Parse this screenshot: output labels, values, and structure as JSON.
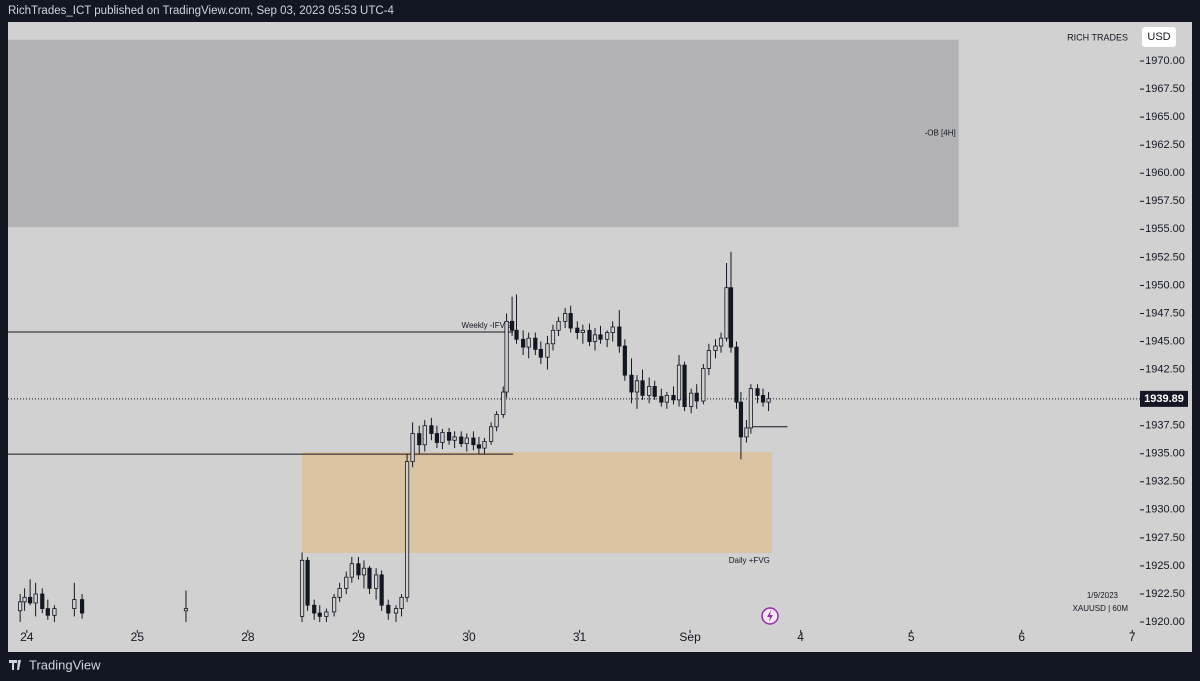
{
  "header": {
    "text": "RichTrades_ICT published on TradingView.com, Sep 03, 2023 05:53 UTC-4"
  },
  "footer": {
    "brand": "TradingView"
  },
  "chart_data": {
    "type": "candlestick",
    "color": "#131722",
    "watermark": "RICH TRADES",
    "currency": "USD",
    "date_label": "1/9/2023",
    "symbol": "XAUUSD | 60M",
    "xlim": [
      -0.17,
      10.07
    ],
    "ylim": [
      1919.29,
      1973.48
    ],
    "xticks": [
      {
        "value": 0,
        "label": "24"
      },
      {
        "value": 1,
        "label": "25"
      },
      {
        "value": 2,
        "label": "28"
      },
      {
        "value": 3,
        "label": "29"
      },
      {
        "value": 4,
        "label": "30"
      },
      {
        "value": 5,
        "label": "31"
      },
      {
        "value": 6,
        "label": "Sep"
      },
      {
        "value": 7,
        "label": "4"
      },
      {
        "value": 8,
        "label": "5"
      },
      {
        "value": 9,
        "label": "6"
      },
      {
        "value": 10,
        "label": "7"
      }
    ],
    "yticks": [
      {
        "value": 1920,
        "label": "1920.00"
      },
      {
        "value": 1922.5,
        "label": "1922.50"
      },
      {
        "value": 1925,
        "label": "1925.00"
      },
      {
        "value": 1927.5,
        "label": "1927.50"
      },
      {
        "value": 1930,
        "label": "1930.00"
      },
      {
        "value": 1932.5,
        "label": "1932.50"
      },
      {
        "value": 1935,
        "label": "1935.00"
      },
      {
        "value": 1937.5,
        "label": "1937.50"
      },
      {
        "value": 1940,
        "label": "1940.00"
      },
      {
        "value": 1942.5,
        "label": "1942.50"
      },
      {
        "value": 1945,
        "label": "1945.00"
      },
      {
        "value": 1947.5,
        "label": "1947.50"
      },
      {
        "value": 1950,
        "label": "1950.00"
      },
      {
        "value": 1952.5,
        "label": "1952.50"
      },
      {
        "value": 1955,
        "label": "1955.00"
      },
      {
        "value": 1957.5,
        "label": "1957.50"
      },
      {
        "value": 1960,
        "label": "1960.00"
      },
      {
        "value": 1962.5,
        "label": "1962.50"
      },
      {
        "value": 1965,
        "label": "1965.00"
      },
      {
        "value": 1967.5,
        "label": "1967.50"
      },
      {
        "value": 1970,
        "label": "1970.00"
      }
    ],
    "zones": [
      {
        "label": "-OB [4H]",
        "x": [
          -0.17,
          8.43
        ],
        "y": [
          1955.2,
          1971.9
        ],
        "color": "#b3b3b5"
      },
      {
        "label": "Daily +FVG",
        "x": [
          2.49,
          6.74
        ],
        "y": [
          1926.15,
          1935.15
        ],
        "color": "#dbc4a2"
      }
    ],
    "levels": [
      {
        "label": "Weekly -IFVG",
        "value": 1945.85,
        "x": [
          -0.17,
          4.4
        ]
      },
      {
        "value": 1934.97,
        "x": [
          -0.17,
          4.4
        ]
      },
      {
        "value": 1937.4,
        "x": [
          6.56,
          6.88
        ]
      }
    ],
    "last_price": 1939.89,
    "x": [
      -0.06,
      -0.02,
      0.03,
      0.08,
      0.14,
      0.19,
      0.25,
      0.43,
      0.5,
      1.44,
      2.49,
      2.54,
      2.6,
      2.65,
      2.71,
      2.78,
      2.83,
      2.89,
      2.94,
      3.0,
      3.05,
      3.1,
      3.16,
      3.21,
      3.27,
      3.34,
      3.39,
      3.44,
      3.49,
      3.55,
      3.6,
      3.66,
      3.71,
      3.76,
      3.82,
      3.87,
      3.93,
      3.98,
      4.04,
      4.09,
      4.14,
      4.2,
      4.25,
      4.31,
      4.34,
      4.39,
      4.43,
      4.49,
      4.54,
      4.6,
      4.65,
      4.71,
      4.76,
      4.81,
      4.87,
      4.92,
      4.98,
      5.03,
      5.09,
      5.14,
      5.19,
      5.25,
      5.3,
      5.36,
      5.41,
      5.47,
      5.52,
      5.57,
      5.63,
      5.68,
      5.74,
      5.79,
      5.85,
      5.9,
      5.95,
      6.01,
      6.06,
      6.12,
      6.17,
      6.23,
      6.28,
      6.33,
      6.37,
      6.42,
      6.46,
      6.51,
      6.55,
      6.61,
      6.66,
      6.71
    ],
    "open": [
      1921,
      1921.8,
      1922.2,
      1921.7,
      1922.5,
      1921.2,
      1920.6,
      1921.2,
      1922,
      1921,
      1920.5,
      1925.5,
      1921.5,
      1920.8,
      1920.5,
      1920.9,
      1922.2,
      1923,
      1924,
      1925.2,
      1924.2,
      1924.8,
      1923,
      1924.2,
      1921.5,
      1920.8,
      1921.2,
      1922.2,
      1934.3,
      1936.8,
      1935.8,
      1937.5,
      1936.8,
      1936,
      1936.9,
      1936.2,
      1936.5,
      1935.9,
      1936.4,
      1935.8,
      1935.5,
      1936.1,
      1937.4,
      1938.5,
      1940.5,
      1946.8,
      1946,
      1945.2,
      1944.5,
      1945.3,
      1944.3,
      1943.6,
      1944.8,
      1946,
      1946.8,
      1947.5,
      1946.2,
      1945.8,
      1946,
      1945,
      1945.6,
      1945.2,
      1945.8,
      1946.3,
      1944.6,
      1942,
      1940.5,
      1941.5,
      1940.2,
      1941,
      1940.1,
      1939.6,
      1940.2,
      1939.8,
      1942.9,
      1939.2,
      1940.4,
      1939.7,
      1942.6,
      1944.2,
      1944.6,
      1945.3,
      1949.8,
      1944.5,
      1939.6,
      1936.5,
      1937.3,
      1940.8,
      1940.2,
      1939.6
    ],
    "high": [
      1922.5,
      1923,
      1923.8,
      1923.5,
      1923,
      1922,
      1921.5,
      1923.5,
      1922.5,
      1922.8,
      1926.2,
      1925.8,
      1922,
      1921.5,
      1921.2,
      1922.5,
      1923.5,
      1924.5,
      1925.8,
      1925.8,
      1925.5,
      1925,
      1924.8,
      1924.6,
      1922,
      1921.5,
      1922.5,
      1935,
      1937.8,
      1937.5,
      1938,
      1938.2,
      1937.5,
      1937.2,
      1937.3,
      1937,
      1937,
      1936.8,
      1937,
      1936.5,
      1936.4,
      1937.8,
      1938.8,
      1941,
      1947.5,
      1949,
      1949.2,
      1946,
      1945.8,
      1945.8,
      1945,
      1945.5,
      1946.5,
      1947.2,
      1948,
      1948.2,
      1946.8,
      1946.5,
      1946.6,
      1946.2,
      1946.4,
      1946,
      1946.8,
      1947.8,
      1945.2,
      1943.5,
      1942,
      1942.5,
      1941.8,
      1941.5,
      1940.8,
      1940.5,
      1941,
      1943.8,
      1943.2,
      1940.8,
      1941.2,
      1943,
      1944.8,
      1945.2,
      1945.8,
      1952,
      1953,
      1945,
      1940.5,
      1938,
      1941.2,
      1941.2,
      1940.8,
      1940.5
    ],
    "low": [
      1920,
      1921,
      1921.5,
      1920.5,
      1920.8,
      1920.2,
      1920,
      1920.5,
      1920.3,
      1920,
      1920,
      1921,
      1920.2,
      1920,
      1920,
      1920.5,
      1921.8,
      1922.5,
      1923.5,
      1923.8,
      1923,
      1922.5,
      1922,
      1921,
      1920.2,
      1920,
      1920.5,
      1921.8,
      1933.8,
      1935,
      1935.2,
      1936.2,
      1935.5,
      1935.4,
      1935.8,
      1935.5,
      1935.6,
      1935.2,
      1935.3,
      1935,
      1935,
      1935.8,
      1937,
      1938.2,
      1940,
      1945.5,
      1944.8,
      1943.8,
      1943.5,
      1943.8,
      1943,
      1942.5,
      1944.2,
      1945.5,
      1946.2,
      1945.8,
      1945.2,
      1944.8,
      1944.6,
      1944.2,
      1944.8,
      1944.5,
      1945,
      1944,
      1941.5,
      1939.5,
      1939,
      1939.8,
      1939.5,
      1939.8,
      1939.2,
      1939,
      1939.4,
      1939.2,
      1938.8,
      1938.6,
      1939,
      1939.4,
      1942,
      1943.5,
      1944,
      1945,
      1944,
      1939,
      1934.5,
      1936,
      1936.8,
      1939.5,
      1939.2,
      1938.8
    ],
    "close": [
      1921.8,
      1922.2,
      1921.7,
      1922.5,
      1921.2,
      1920.6,
      1921.2,
      1922,
      1920.8,
      1921.2,
      1925.5,
      1921.5,
      1920.8,
      1920.5,
      1920.9,
      1922.2,
      1923,
      1924,
      1925.2,
      1924.2,
      1924.8,
      1923,
      1924.2,
      1921.5,
      1920.8,
      1921.2,
      1922.2,
      1934.3,
      1936.8,
      1935.8,
      1937.5,
      1936.8,
      1936,
      1936.9,
      1936.2,
      1936.5,
      1935.9,
      1936.4,
      1935.8,
      1935.5,
      1936.1,
      1937.4,
      1938.5,
      1940.5,
      1946.8,
      1946,
      1945.2,
      1944.5,
      1945.3,
      1944.3,
      1943.6,
      1944.8,
      1946,
      1946.8,
      1947.5,
      1946.2,
      1945.8,
      1946,
      1945,
      1945.6,
      1945.2,
      1945.8,
      1946.3,
      1944.6,
      1942,
      1940.5,
      1941.5,
      1940.2,
      1941,
      1940.1,
      1939.6,
      1940.2,
      1939.8,
      1942.9,
      1939.2,
      1940.4,
      1939.7,
      1942.6,
      1944.2,
      1944.6,
      1945.3,
      1949.8,
      1944.5,
      1939.6,
      1936.5,
      1937.3,
      1940.8,
      1940.2,
      1939.6,
      1939.9
    ]
  }
}
